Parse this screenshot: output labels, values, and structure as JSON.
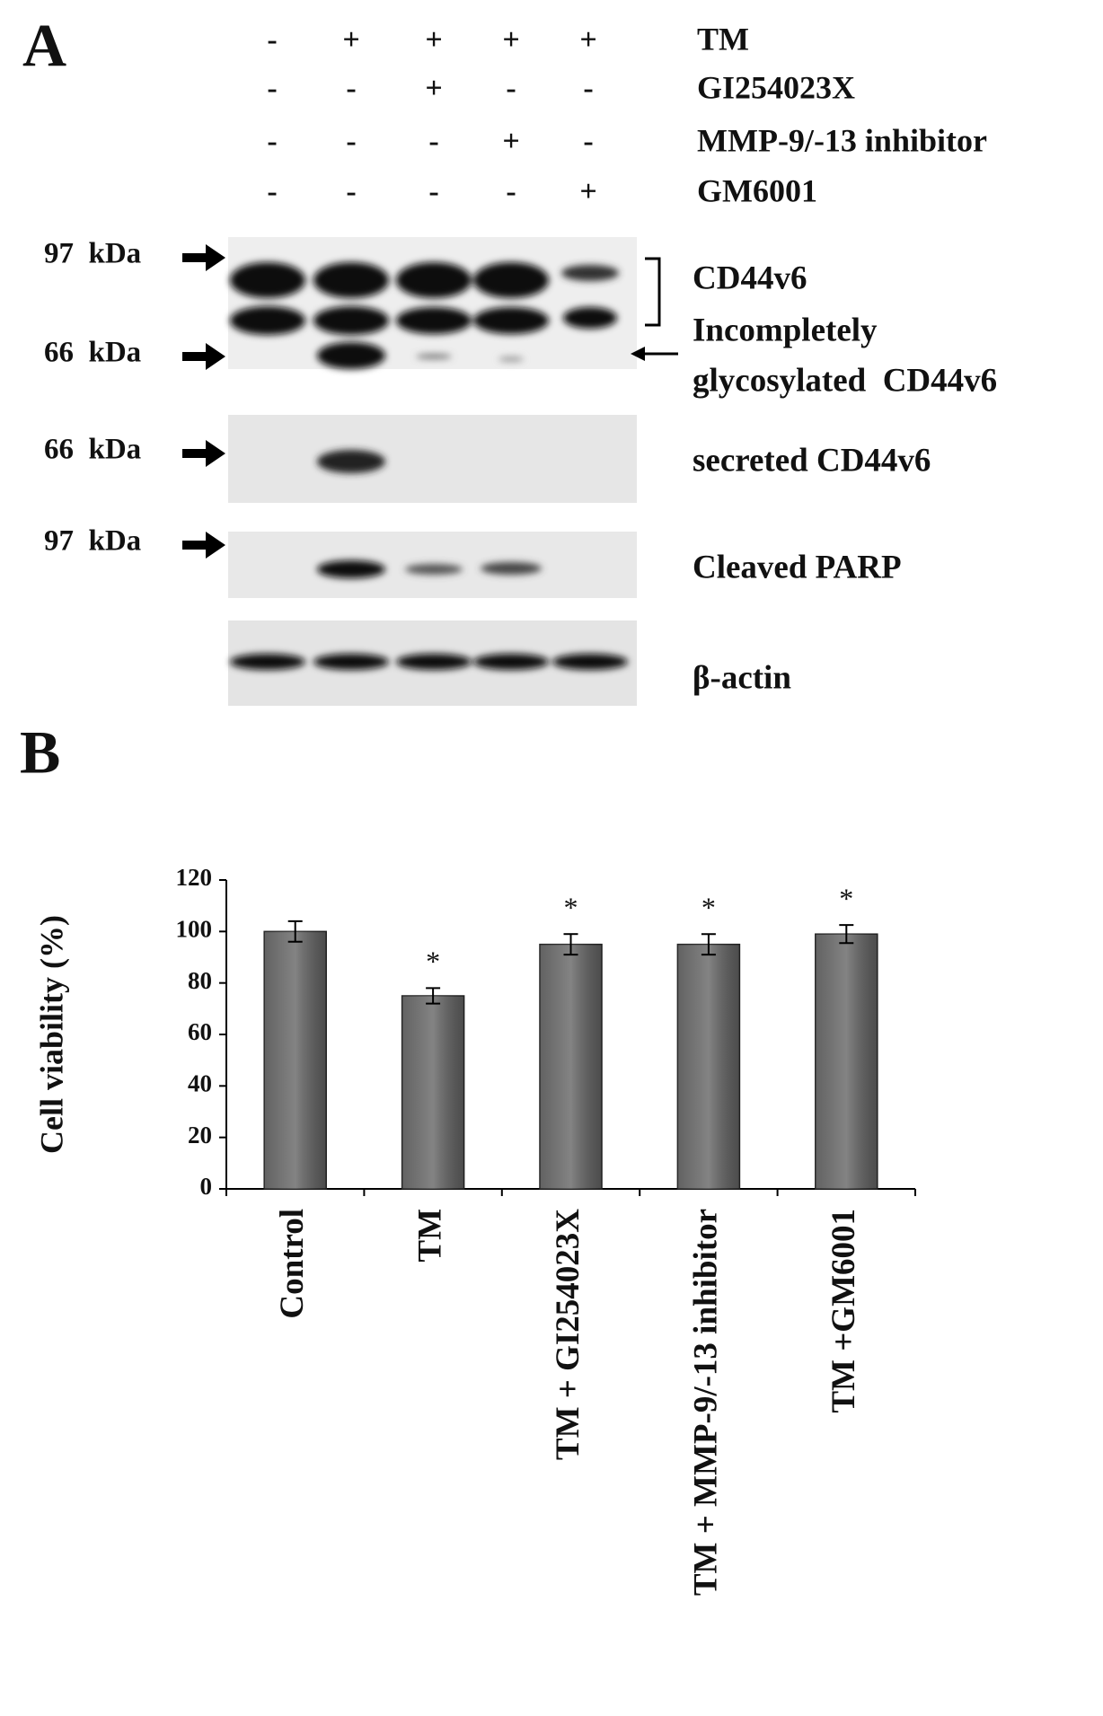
{
  "panel_a": {
    "label": "A",
    "treatments": [
      {
        "name": "TM",
        "signs": [
          "-",
          "+",
          "+",
          "+",
          "+"
        ]
      },
      {
        "name": "GI254023X",
        "signs": [
          "-",
          "-",
          "+",
          "-",
          "-"
        ]
      },
      {
        "name": "MMP-9/-13 inhibitor",
        "signs": [
          "-",
          "-",
          "-",
          "+",
          "-"
        ]
      },
      {
        "name": "GM6001",
        "signs": [
          "-",
          "-",
          "-",
          "-",
          "+"
        ]
      }
    ],
    "markers": [
      "97  kDa",
      "66  kDa",
      "66  kDa",
      "97  kDa"
    ],
    "blot_labels": [
      "CD44v6",
      "Incompletely",
      "glycosylated  CD44v6",
      "secreted CD44v6",
      "Cleaved PARP",
      "β-actin"
    ]
  },
  "panel_b": {
    "label": "B"
  },
  "chart_data": {
    "type": "bar",
    "y_label": "Cell viability (%)",
    "categories": [
      "Control",
      "TM",
      "TM + GI254023X",
      "TM + MMP-9/-13 inhibitor",
      "TM +GM6001"
    ],
    "values": [
      100,
      75,
      95,
      95,
      99
    ],
    "errors": [
      4,
      3,
      4,
      4,
      3.5
    ],
    "annotations": [
      null,
      "*",
      "*",
      "*",
      "*"
    ],
    "color": "#5a5a5a",
    "ylim": [
      0,
      120
    ],
    "yticks": [
      0,
      20,
      40,
      60,
      80,
      100,
      120
    ]
  }
}
